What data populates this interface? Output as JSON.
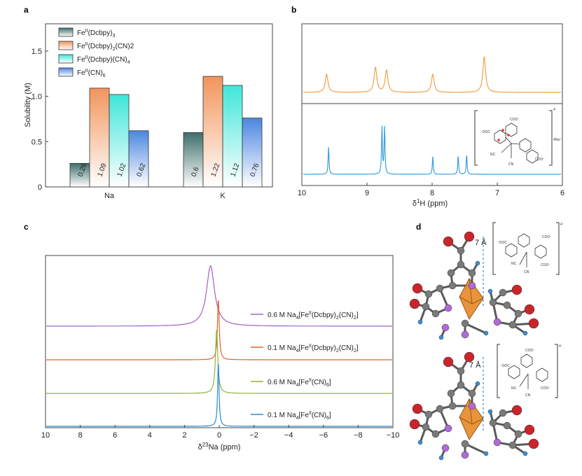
{
  "panels": {
    "a": "a",
    "b": "b",
    "c": "c",
    "d": "d"
  },
  "chart_data": [
    {
      "id": "a",
      "type": "bar",
      "title": "",
      "xlabel": "",
      "ylabel": "Solubility (M)",
      "ylim": [
        0,
        1.8
      ],
      "yticks": [
        "0",
        "0.5",
        "1.0",
        "1.5"
      ],
      "categories": [
        "Na",
        "K"
      ],
      "series": [
        {
          "name": "Fe(Dcbpy)3",
          "legend_main": "Fe",
          "legend_sup": "II",
          "legend_rest": "(Dcbpy)",
          "legend_sub": "3",
          "legend_tail": "",
          "color": "#3d6e6a",
          "values": [
            0.26,
            0.6
          ],
          "labels": [
            "0.26",
            "0.6"
          ]
        },
        {
          "name": "Fe(Dcbpy)2(CN)2",
          "legend_main": "Fe",
          "legend_sup": "II",
          "legend_rest": "(Dcbpy)",
          "legend_sub": "2",
          "legend_tail": "(CN)2",
          "color": "#f2945c",
          "values": [
            1.09,
            1.22
          ],
          "labels": [
            "1.09",
            "1.22"
          ]
        },
        {
          "name": "Fe(Dcbpy)(CN)4",
          "legend_main": "Fe",
          "legend_sup": "II",
          "legend_rest": "(Dcbpy)(CN)",
          "legend_sub": "4",
          "legend_tail": "",
          "color": "#3fe6d9",
          "values": [
            1.02,
            1.12
          ],
          "labels": [
            "1.02",
            "1.12"
          ]
        },
        {
          "name": "Fe(CN)6",
          "legend_main": "Fe",
          "legend_sup": "II",
          "legend_rest": "(CN)",
          "legend_sub": "6",
          "legend_tail": "",
          "color": "#4c86e0",
          "values": [
            0.62,
            0.76
          ],
          "labels": [
            "0.62",
            "0.76"
          ]
        }
      ]
    },
    {
      "id": "b",
      "type": "line",
      "xlabel": "δ 1H (ppm)",
      "xlabel_delta": "δ",
      "xlabel_sup": "1",
      "xlabel_rest": "H (ppm)",
      "xlim": [
        10,
        6
      ],
      "xticks": [
        "10",
        "9",
        "8",
        "7",
        "6"
      ],
      "series": [
        {
          "name": "upper spectrum",
          "color": "#f2a04a",
          "peaks": [
            {
              "x": 9.62,
              "h": 0.38
            },
            {
              "x": 8.87,
              "h": 0.52
            },
            {
              "x": 8.7,
              "h": 0.46
            },
            {
              "x": 7.99,
              "h": 0.38
            },
            {
              "x": 7.2,
              "h": 0.75
            }
          ]
        },
        {
          "name": "lower spectrum",
          "color": "#3aa0e0",
          "peaks": [
            {
              "x": 9.59,
              "h": 0.5
            },
            {
              "x": 8.77,
              "h": 0.85
            },
            {
              "x": 8.73,
              "h": 0.85
            },
            {
              "x": 7.99,
              "h": 0.32
            },
            {
              "x": 7.6,
              "h": 0.34
            },
            {
              "x": 7.47,
              "h": 0.36
            }
          ]
        }
      ],
      "inset_labels": [
        "COO⁻",
        "⁻OOC",
        "NC",
        "CN",
        "COO⁻",
        "4⁻",
        "4Na⁺"
      ]
    },
    {
      "id": "c",
      "type": "line",
      "xlabel": "δ 23Na (ppm)",
      "xlabel_delta": "δ",
      "xlabel_sup": "23",
      "xlabel_rest": "Na (ppm)",
      "xlim": [
        10,
        -10
      ],
      "xticks": [
        "10",
        "8",
        "6",
        "4",
        "2",
        "0",
        "−2",
        "−4",
        "−6",
        "−8",
        "−10"
      ],
      "series": [
        {
          "name": "0.6 M Na4[Fe(Dcbpy)2(CN)2]",
          "label_a": "0.6 M Na",
          "label_b": "4",
          "label_c": "[Fe",
          "label_d": "II",
          "label_e": "(Dcbpy)",
          "label_f": "2",
          "label_g": "(CN)",
          "label_h": "2",
          "label_i": "]",
          "color": "#a65ec4",
          "peak": 0.5,
          "height": 0.88,
          "width": 0.28
        },
        {
          "name": "0.1 M Na4[Fe(Dcbpy)2(CN)2]",
          "label_a": "0.1 M Na",
          "label_b": "4",
          "label_c": "[Fe",
          "label_d": "II",
          "label_e": "(Dcbpy)",
          "label_f": "2",
          "label_g": "(CN)",
          "label_h": "2",
          "label_i": "]",
          "color": "#e2622a",
          "peak": 0.05,
          "height": 0.9,
          "width": 0.06
        },
        {
          "name": "0.6 M Na4[Fe(CN)6]",
          "label_a": "0.6 M Na",
          "label_b": "4",
          "label_c": "[Fe",
          "label_d": "II",
          "label_e": "(CN)",
          "label_f": "6",
          "label_g": "",
          "label_h": "",
          "label_i": "]",
          "color": "#8cb63c",
          "peak": 0.15,
          "height": 0.95,
          "width": 0.08
        },
        {
          "name": "0.1 M Na4[Fe(CN)6]",
          "label_a": "0.1 M Na",
          "label_b": "4",
          "label_c": "[Fe",
          "label_d": "II",
          "label_e": "(CN)",
          "label_f": "6",
          "label_g": "",
          "label_h": "",
          "label_i": "]",
          "color": "#2a8bd6",
          "peak": 0.05,
          "height": 0.95,
          "width": 0.05
        }
      ]
    }
  ],
  "panel_d": {
    "distance_upper": "7 Å",
    "distance_lower": "7 Å",
    "inset_upper_labels": [
      "⁻OOC",
      "COO⁻",
      "NC",
      "CN",
      "COO⁻",
      "4⁻"
    ],
    "inset_lower_labels": [
      "COO⁻",
      "⁻OOC",
      "NC",
      "CN",
      "COO⁻",
      "4⁻"
    ],
    "colors": {
      "carbon": "#7a7a7a",
      "oxygen": "#c9252b",
      "nitrogen": "#b06ad6",
      "hydrogen": "#3a8fd8",
      "iron": "#e88a2a"
    }
  }
}
